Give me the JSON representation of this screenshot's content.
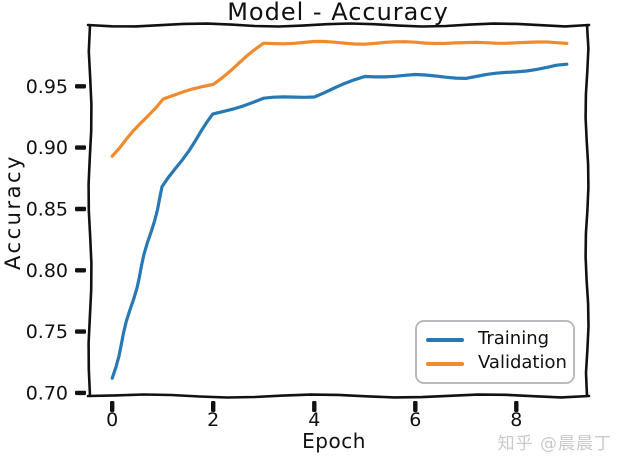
{
  "chart_data": {
    "type": "line",
    "style": "xkcd-sketch",
    "title": "Model - Accuracy",
    "xlabel": "Epoch",
    "ylabel": "Accuracy",
    "x": [
      0,
      1,
      2,
      3,
      4,
      5,
      6,
      7,
      8,
      9
    ],
    "series": [
      {
        "name": "Training",
        "color": "#2878b4",
        "values": [
          0.712,
          0.868,
          0.927,
          0.94,
          0.942,
          0.958,
          0.959,
          0.957,
          0.962,
          0.968
        ]
      },
      {
        "name": "Validation",
        "color": "#ef8b2d",
        "values": [
          0.893,
          0.94,
          0.952,
          0.985,
          0.986,
          0.985,
          0.986,
          0.985,
          0.986,
          0.985
        ]
      }
    ],
    "xticks": [
      0,
      2,
      4,
      6,
      8
    ],
    "xtick_labels": [
      "0",
      "2",
      "4",
      "6",
      "8"
    ],
    "yticks": [
      0.7,
      0.75,
      0.8,
      0.85,
      0.9,
      0.95
    ],
    "ytick_labels": [
      "0.70",
      "0.75",
      "0.80",
      "0.85",
      "0.90",
      "0.95"
    ],
    "xlim": [
      -0.44,
      9.4
    ],
    "ylim": [
      0.6975,
      1.0
    ],
    "grid": false,
    "legend_position": "lower right",
    "axis_color": "#111111"
  },
  "legend": {
    "items": [
      {
        "label": "Training",
        "color": "#2878b4"
      },
      {
        "label": "Validation",
        "color": "#ef8b2d"
      }
    ]
  },
  "watermark": {
    "text": "知乎 @晨晨丁",
    "color": "#c9c9c9"
  }
}
